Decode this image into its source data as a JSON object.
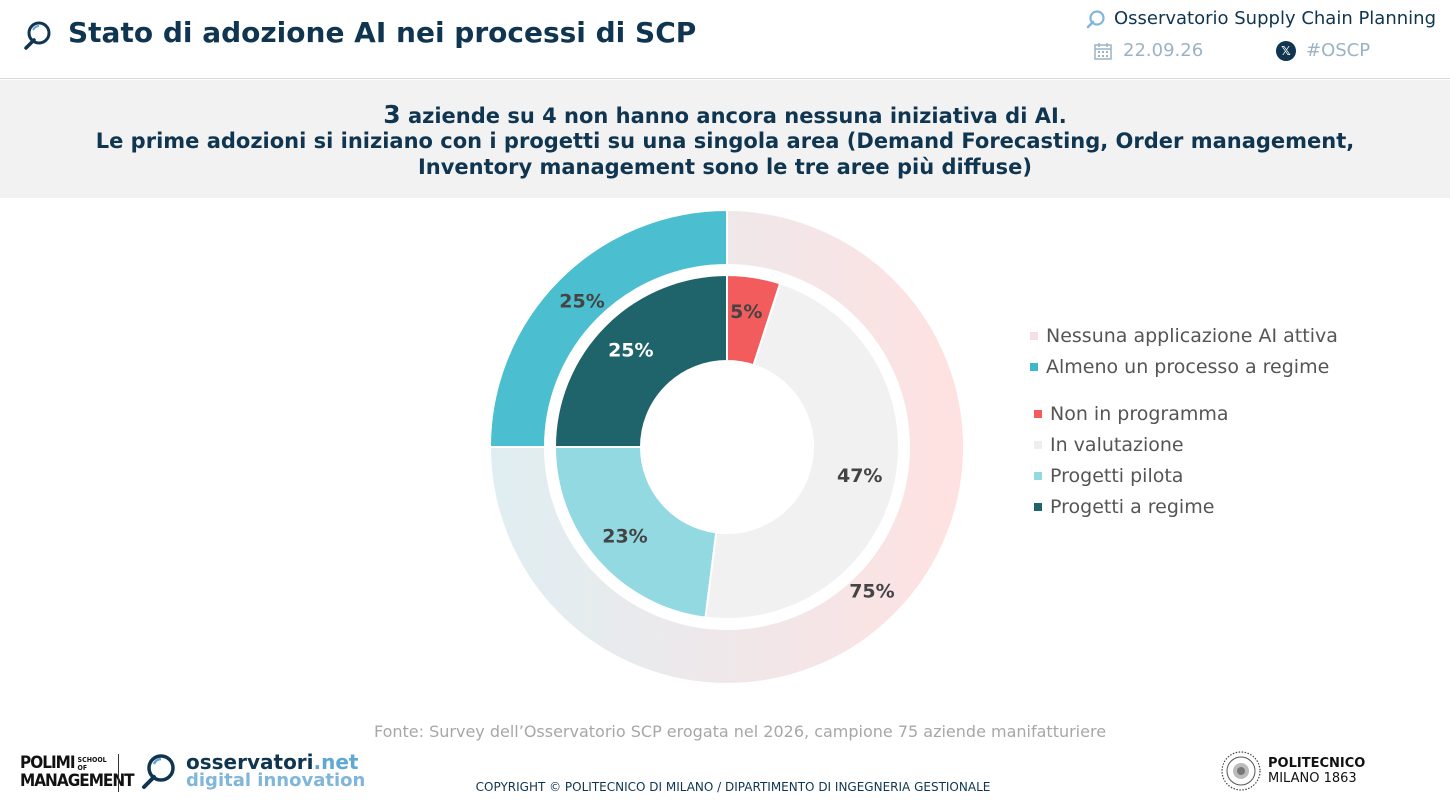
{
  "header": {
    "title": "Stato di adozione AI nei processi di SCP",
    "observatory": "Osservatorio Supply Chain Planning",
    "date": "22.09.26",
    "hashtag": "#OSCP"
  },
  "banner": {
    "line1_bold_number": "3",
    "line1_rest": " aziende su 4 non hanno ancora nessuna iniziativa di AI.",
    "line2": "Le prime adozioni si iniziano con i progetti su una singola area (Demand Forecasting, Order management, Inventory management sono le tre aree più diffuse)"
  },
  "chart_data": {
    "type": "pie",
    "subtype": "nested-donut",
    "outer_ring": {
      "categories": [
        "Nessuna applicazione AI attiva",
        "Almeno un processo a regime"
      ],
      "values": [
        75,
        25
      ],
      "labels": [
        "75%",
        "25%"
      ],
      "colors": [
        "#fde0e0",
        "#4bbfcf"
      ]
    },
    "inner_ring": {
      "categories": [
        "Non in programma",
        "In valutazione",
        "Progetti pilota",
        "Progetti a regime"
      ],
      "values": [
        5,
        47,
        23,
        25
      ],
      "labels": [
        "5%",
        "47%",
        "23%",
        "25%"
      ],
      "colors": [
        "#f25c5c",
        "#f1f1f1",
        "#93d9e2",
        "#1f636b"
      ]
    },
    "legend_position": "right"
  },
  "legend": {
    "outer": [
      {
        "label": "Nessuna applicazione AI attiva",
        "color": "#f6dfe3"
      },
      {
        "label": "Almeno un processo a regime",
        "color": "#3fb7c8"
      }
    ],
    "inner": [
      {
        "label": "Non in programma",
        "color": "#f25c5c"
      },
      {
        "label": "In valutazione",
        "color": "#eeeeee"
      },
      {
        "label": "Progetti pilota",
        "color": "#93d9e2"
      },
      {
        "label": "Progetti a regime",
        "color": "#1f636b"
      }
    ]
  },
  "source": "Fonte: Survey dell’Osservatorio SCP erogata nel 2026, campione 75 aziende manifatturiere",
  "footer": {
    "polimi_line1": "POLIMI",
    "polimi_line2": "MANAGEMENT",
    "polimi_school": "SCHOOL OF",
    "osservatori_main": "osservatori",
    "osservatori_tld": ".net",
    "osservatori_sub": "digital innovation",
    "copyright": "COPYRIGHT © POLITECNICO DI MILANO / DIPARTIMENTO DI INGEGNERIA GESTIONALE",
    "politecnico_line1": "POLITECNICO",
    "politecnico_line2": "MILANO 1863"
  }
}
